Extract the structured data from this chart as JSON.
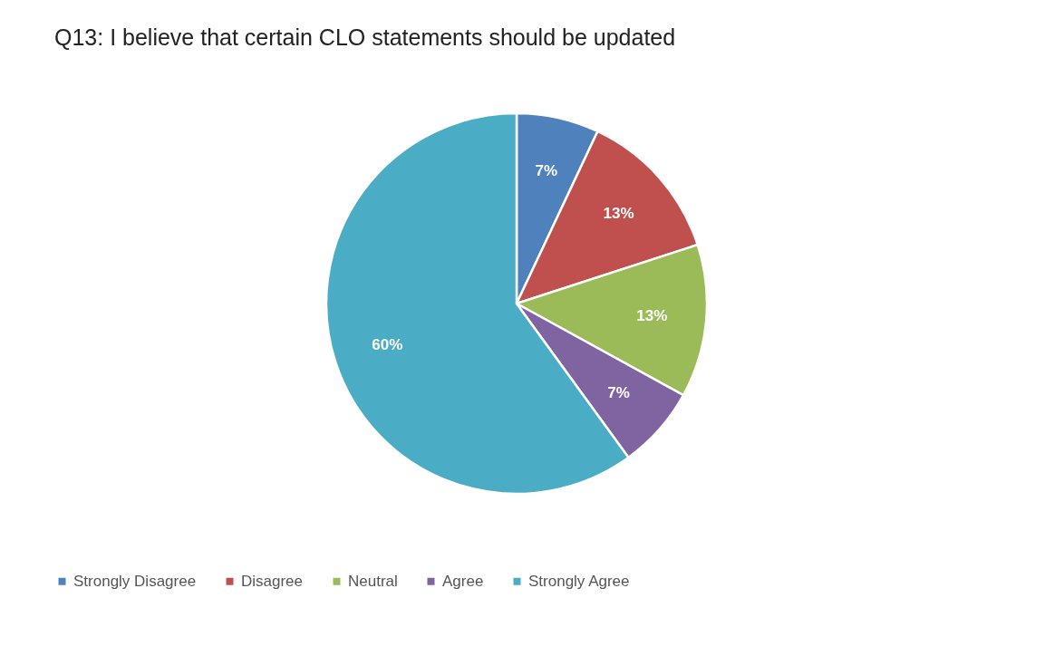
{
  "chart_data": {
    "type": "pie",
    "title": "Q13: I believe that certain CLO statements should be updated",
    "categories": [
      "Strongly Disagree",
      "Disagree",
      "Neutral",
      "Agree",
      "Strongly Agree"
    ],
    "values": [
      7,
      13,
      13,
      7,
      60
    ],
    "colors": [
      "#4f81bd",
      "#c0504d",
      "#9bbb59",
      "#8064a2",
      "#4bacc6"
    ],
    "value_labels": [
      "7%",
      "13%",
      "13%",
      "7%",
      "60%"
    ],
    "legend": "bottom"
  }
}
